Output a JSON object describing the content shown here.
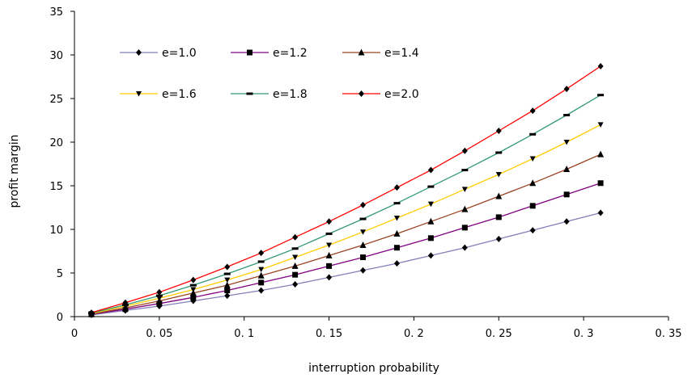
{
  "chart_data": {
    "type": "line",
    "title": "",
    "xlabel": "interruption probability",
    "ylabel": "profit  margin",
    "xlim": [
      0,
      0.35
    ],
    "ylim": [
      0,
      35
    ],
    "x_ticks": [
      0,
      0.05,
      0.1,
      0.15,
      0.2,
      0.25,
      0.3,
      0.35
    ],
    "x_tick_labels": [
      "0",
      "0. 05",
      "0. 1",
      "0. 15",
      "0. 2",
      "0. 25",
      "0. 3",
      "0. 35"
    ],
    "y_ticks": [
      0,
      5,
      10,
      15,
      20,
      25,
      30,
      35
    ],
    "y_tick_labels": [
      "0",
      "5",
      "10",
      "15",
      "20",
      "25",
      "30",
      "35"
    ],
    "grid": false,
    "legend_position": "top-left",
    "x": [
      0.01,
      0.03,
      0.05,
      0.07,
      0.09,
      0.11,
      0.13,
      0.15,
      0.17,
      0.19,
      0.21,
      0.23,
      0.25,
      0.27,
      0.29,
      0.31
    ],
    "series": [
      {
        "name": "e=1.0",
        "color": "#8080b8",
        "marker": "diamond",
        "values": [
          0.2,
          0.7,
          1.2,
          1.8,
          2.4,
          3.0,
          3.7,
          4.5,
          5.3,
          6.1,
          7.0,
          7.9,
          8.9,
          9.9,
          10.9,
          11.9
        ]
      },
      {
        "name": "e=1.2",
        "color": "#800080",
        "marker": "square",
        "values": [
          0.25,
          0.85,
          1.5,
          2.2,
          3.0,
          3.9,
          4.8,
          5.8,
          6.8,
          7.9,
          9.0,
          10.2,
          11.4,
          12.7,
          14.0,
          15.3
        ]
      },
      {
        "name": "e=1.4",
        "color": "#994422",
        "marker": "triangle",
        "values": [
          0.3,
          1.0,
          1.8,
          2.7,
          3.6,
          4.7,
          5.8,
          7.0,
          8.2,
          9.5,
          10.9,
          12.3,
          13.8,
          15.3,
          16.9,
          18.6
        ]
      },
      {
        "name": "e=1.6",
        "color": "#ffcc00",
        "marker": "tri-down",
        "values": [
          0.35,
          1.2,
          2.1,
          3.1,
          4.2,
          5.4,
          6.8,
          8.2,
          9.7,
          11.3,
          12.9,
          14.6,
          16.3,
          18.1,
          20.0,
          22.0
        ]
      },
      {
        "name": "e=1.8",
        "color": "#339977",
        "marker": "dash",
        "values": [
          0.4,
          1.35,
          2.4,
          3.6,
          4.9,
          6.3,
          7.8,
          9.5,
          11.2,
          13.0,
          14.9,
          16.8,
          18.8,
          20.9,
          23.1,
          25.4
        ]
      },
      {
        "name": "e=2.0",
        "color": "#ff0000",
        "marker": "diamond",
        "values": [
          0.45,
          1.6,
          2.8,
          4.2,
          5.7,
          7.3,
          9.1,
          10.9,
          12.8,
          14.8,
          16.8,
          19.0,
          21.3,
          23.6,
          26.1,
          28.7
        ]
      }
    ]
  }
}
